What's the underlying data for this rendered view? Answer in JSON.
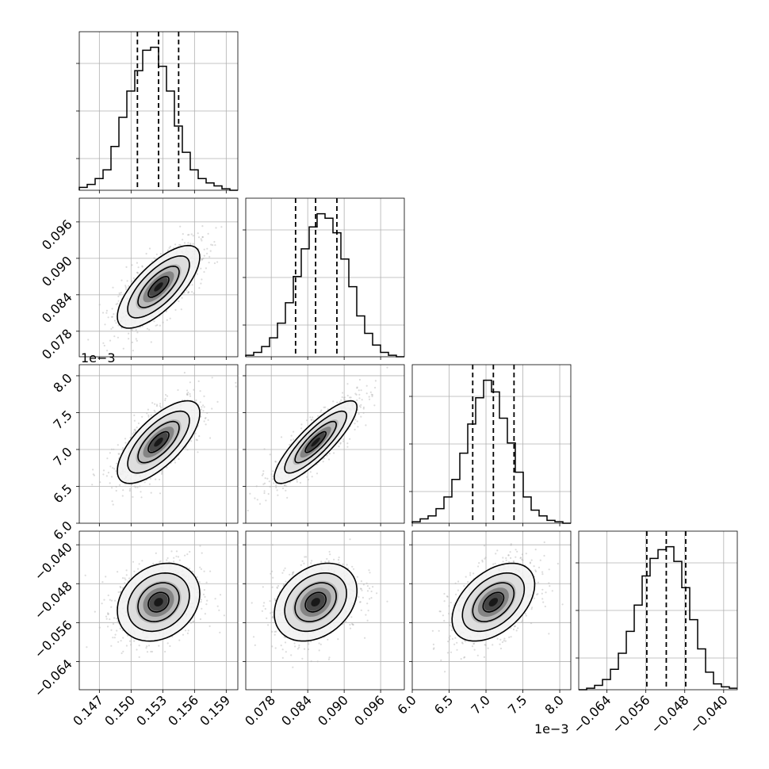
{
  "chart_data": {
    "type": "corner",
    "parameters": [
      {
        "ticks": [
          0.147,
          0.15,
          0.153,
          0.156,
          0.159
        ],
        "tick_labels": [
          "0.147",
          "0.150",
          "0.153",
          "0.156",
          "0.159"
        ],
        "range": [
          0.1451,
          0.1601
        ],
        "quantiles": [
          0.1506,
          0.1526,
          0.1545
        ],
        "offset_label": ""
      },
      {
        "ticks": [
          0.078,
          0.084,
          0.09,
          0.096
        ],
        "tick_labels": [
          "0.078",
          "0.084",
          "0.090",
          "0.096"
        ],
        "range": [
          0.0738,
          0.0999
        ],
        "quantiles": [
          0.082,
          0.0853,
          0.0888
        ],
        "offset_label": ""
      },
      {
        "ticks": [
          6.0,
          6.5,
          7.0,
          7.5,
          8.0
        ],
        "tick_labels": [
          "6.0",
          "6.5",
          "7.0",
          "7.5",
          "8.0"
        ],
        "range": [
          6.0,
          8.15
        ],
        "quantiles": [
          6.82,
          7.1,
          7.38
        ],
        "offset_label": "1e−3"
      },
      {
        "ticks": [
          -0.064,
          -0.056,
          -0.048,
          -0.04
        ],
        "tick_labels": [
          "−0.064",
          "−0.056",
          "−0.048",
          "−0.040"
        ],
        "range": [
          -0.0698,
          -0.0372
        ],
        "quantiles": [
          -0.0558,
          -0.0518,
          -0.0478
        ],
        "offset_label": ""
      }
    ],
    "histograms": [
      [
        2,
        4,
        8,
        14,
        30,
        50,
        68,
        82,
        96,
        98,
        85,
        68,
        44,
        26,
        14,
        8,
        5,
        3,
        1,
        0
      ],
      [
        1,
        3,
        7,
        13,
        23,
        37,
        55,
        74,
        89,
        98,
        95,
        85,
        67,
        48,
        28,
        16,
        8,
        3,
        1,
        0
      ],
      [
        1,
        3,
        5,
        10,
        18,
        30,
        48,
        68,
        86,
        98,
        90,
        72,
        55,
        35,
        18,
        9,
        5,
        2,
        1,
        0
      ],
      [
        0,
        1,
        3,
        7,
        14,
        25,
        40,
        58,
        78,
        90,
        96,
        98,
        88,
        70,
        48,
        28,
        12,
        4,
        2,
        1
      ]
    ],
    "correlations": {
      "1-0": 0.72,
      "2-0": 0.7,
      "2-1": 0.85,
      "3-0": 0.22,
      "3-1": 0.3,
      "3-2": 0.45
    },
    "grid": true,
    "histogram_color": "#000000",
    "contour_color": "#000000",
    "quantile_line_style": "dashed",
    "samples_color": "#9a9a9a"
  }
}
